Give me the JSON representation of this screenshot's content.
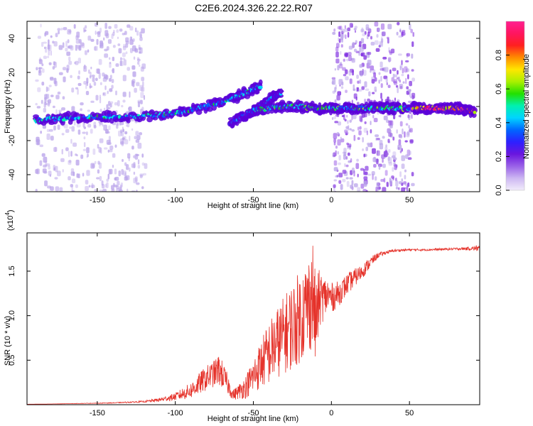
{
  "title": "C2E6.2024.326.22.22.R07",
  "colors": {
    "scatter_light": "#b9a3ea",
    "scatter_mid": "#7f2fe0",
    "scatter_dark": "#5a00d8",
    "snr_line": "#e5322a",
    "axes": "#000000"
  },
  "chart_data": [
    {
      "type": "heatmap",
      "xlabel": "Height of straight line (km)",
      "ylabel": "Frequency (Hz)",
      "xlim": [
        -195,
        95
      ],
      "ylim": [
        -50,
        50
      ],
      "xticks": [
        -150,
        -100,
        -50,
        0,
        50
      ],
      "yticks": [
        -40,
        -20,
        0,
        20,
        40
      ],
      "colorbar": {
        "label": "Normalized spectral amplitude",
        "range": [
          0,
          1
        ],
        "ticks": [
          0.0,
          0.2,
          0.4,
          0.6,
          0.8
        ],
        "colors": [
          "#f2ecfb",
          "#cdb7f2",
          "#9a61e8",
          "#6a16de",
          "#2d20ff",
          "#0066ff",
          "#00d4ff",
          "#00f0b0",
          "#22e000",
          "#aaf000",
          "#ffe600",
          "#ff8c00",
          "#ff2020",
          "#ff1560",
          "#ff2090"
        ]
      },
      "tracks": [
        {
          "x": [
            -190,
            -170,
            -150,
            -130,
            -110,
            -95,
            -80,
            -65,
            -55,
            -45
          ],
          "y": [
            -8,
            -7,
            -6,
            -6,
            -5,
            -3,
            0,
            4,
            8,
            12
          ],
          "amplitude": 0.4
        },
        {
          "x": [
            -65,
            -55,
            -45,
            -38,
            -32
          ],
          "y": [
            -10,
            -5,
            0,
            5,
            8
          ],
          "amplitude": 0.3
        },
        {
          "x": [
            -50,
            -40,
            -30,
            -20,
            -10,
            0,
            10,
            20,
            30,
            40,
            50
          ],
          "y": [
            -2,
            -1,
            0,
            0,
            -1,
            -1,
            -1,
            -1,
            -1,
            -1,
            -1
          ],
          "amplitude": 0.45
        },
        {
          "x": [
            52,
            60,
            70,
            78,
            82,
            86,
            92
          ],
          "y": [
            -1,
            -1,
            -1,
            -1,
            -1,
            -2,
            -3
          ],
          "amplitude": 0.92
        }
      ],
      "bands": [
        {
          "x_from": -190,
          "x_to": -120,
          "amplitude": 0.05
        },
        {
          "x_from": 0,
          "x_to": 52,
          "amplitude": 0.12
        }
      ]
    },
    {
      "type": "line",
      "xlabel": "Height of straight line (km)",
      "ylabel": "SNR (10 * v/v)",
      "exponent_label": "(x10",
      "exponent_value": "4",
      "exponent_close": ")",
      "xlim": [
        -195,
        95
      ],
      "ylim": [
        0,
        19300
      ],
      "xticks": [
        -150,
        -100,
        -50,
        0,
        50
      ],
      "yticks": [
        0.5,
        1.0,
        1.5
      ],
      "ytick_labels": [
        "0.5",
        "1.0",
        "1.5"
      ],
      "series": [
        {
          "color": "#e5322a",
          "x": [
            -195,
            -180,
            -160,
            -140,
            -120,
            -110,
            -100,
            -95,
            -90,
            -85,
            -80,
            -75,
            -72,
            -70,
            -67,
            -63,
            -60,
            -55,
            -50,
            -45,
            -40,
            -35,
            -30,
            -25,
            -20,
            -15,
            -12,
            -10,
            -8,
            -5,
            -2,
            0,
            5,
            10,
            15,
            20,
            25,
            30,
            35,
            40,
            50,
            60,
            70,
            80,
            90,
            95
          ],
          "y": [
            50,
            80,
            140,
            200,
            350,
            550,
            900,
            1250,
            1600,
            2300,
            3000,
            3500,
            3900,
            3400,
            2500,
            1100,
            1400,
            2000,
            3200,
            4600,
            5800,
            6900,
            7900,
            8900,
            9900,
            11200,
            12500,
            9000,
            11800,
            12000,
            12300,
            12000,
            12500,
            13500,
            14300,
            15000,
            16000,
            16800,
            17100,
            17300,
            17400,
            17400,
            17450,
            17500,
            17550,
            17600
          ],
          "noise": [
            0,
            0,
            20,
            40,
            90,
            220,
            420,
            700,
            900,
            1200,
            1400,
            1500,
            1800,
            1600,
            1200,
            600,
            800,
            1300,
            2000,
            2800,
            3600,
            4000,
            4400,
            5000,
            5200,
            5400,
            6400,
            5000,
            3400,
            2500,
            2000,
            1700,
            1400,
            1200,
            1000,
            800,
            600,
            300,
            200,
            160,
            120,
            120,
            130,
            140,
            200,
            400
          ]
        }
      ]
    }
  ]
}
